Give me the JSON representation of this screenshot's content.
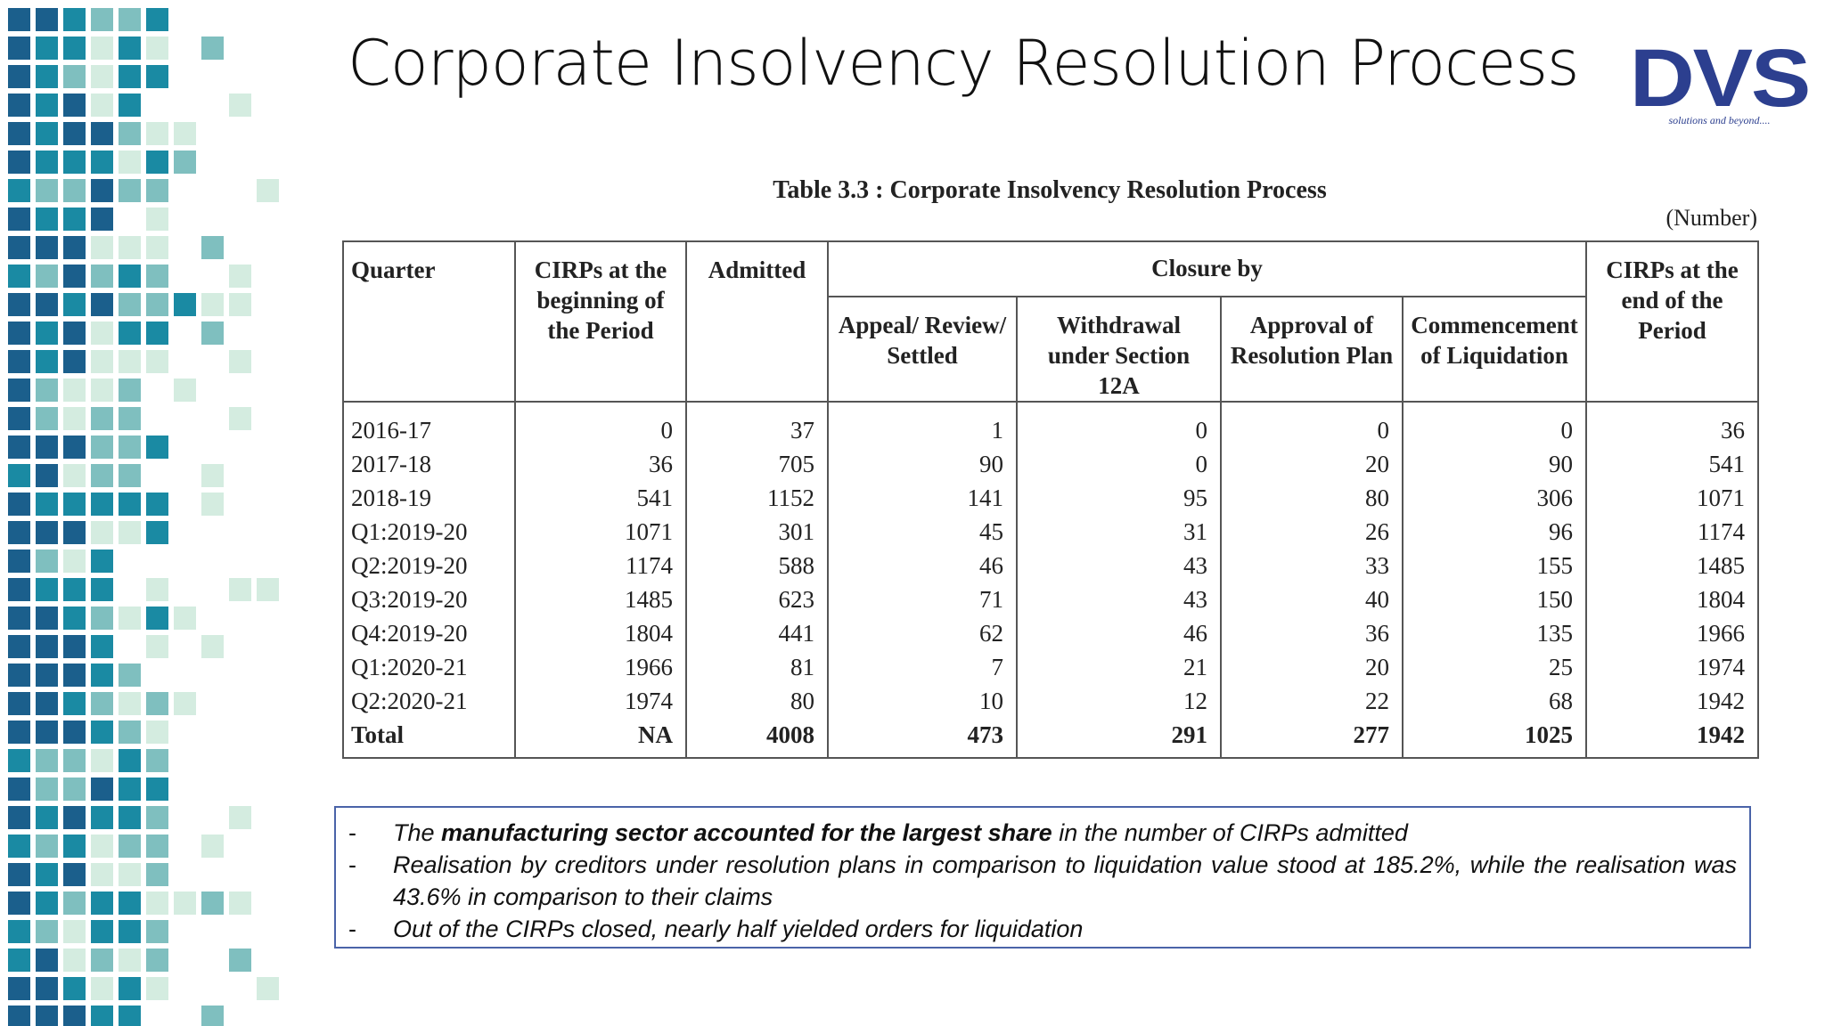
{
  "header": {
    "title": "Corporate Insolvency Resolution Process",
    "logo": "DVS",
    "tagline": "solutions and beyond...."
  },
  "table": {
    "caption": "Table 3.3 : Corporate Insolvency Resolution Process",
    "unit": "(Number)",
    "columns": [
      "Quarter",
      "CIRPs at the beginning of the Period",
      "Admitted",
      "Closure by",
      "CIRPs at the end of the Period"
    ],
    "subcolumns": [
      "Appeal/ Review/ Settled",
      "Withdrawal under Section 12A",
      "Approval of Resolution Plan",
      "Commencement of Liquidation"
    ],
    "rows": [
      [
        "2016-17",
        0,
        37,
        1,
        0,
        0,
        0,
        36
      ],
      [
        "2017-18",
        36,
        705,
        90,
        0,
        20,
        90,
        541
      ],
      [
        "2018-19",
        541,
        1152,
        141,
        95,
        80,
        306,
        1071
      ],
      [
        "Q1:2019-20",
        1071,
        301,
        45,
        31,
        26,
        96,
        1174
      ],
      [
        "Q2:2019-20",
        1174,
        588,
        46,
        43,
        33,
        155,
        1485
      ],
      [
        "Q3:2019-20",
        1485,
        623,
        71,
        43,
        40,
        150,
        1804
      ],
      [
        "Q4:2019-20",
        1804,
        441,
        62,
        46,
        36,
        135,
        1966
      ],
      [
        "Q1:2020-21",
        1966,
        81,
        7,
        21,
        20,
        25,
        1974
      ],
      [
        "Q2:2020-21",
        1974,
        80,
        10,
        12,
        22,
        68,
        1942
      ]
    ],
    "total": [
      "Total",
      "NA",
      4008,
      473,
      291,
      277,
      1025,
      1942
    ]
  },
  "notes": {
    "marker": "-",
    "items": [
      {
        "before": "The ",
        "bold": "manufacturing sector accounted for the largest share",
        "after": " in the number of CIRPs admitted"
      },
      {
        "text": "Realisation by creditors under resolution plans in comparison to liquidation value stood at 185.2%, while the realisation was 43.6% in comparison to their claims"
      },
      {
        "text": "Out of the CIRPs closed, nearly half yielded orders for liquidation"
      }
    ]
  }
}
